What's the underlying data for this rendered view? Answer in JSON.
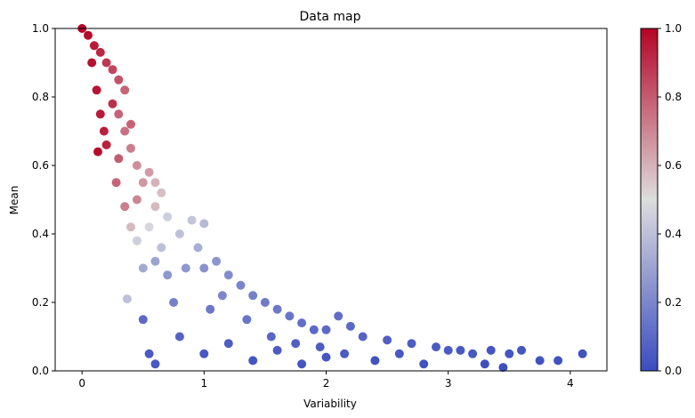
{
  "chart_data": {
    "type": "scatter",
    "title": "Data map",
    "xlabel": "Variability",
    "ylabel": "Mean",
    "xlim": [
      -0.22,
      4.3
    ],
    "ylim": [
      0.0,
      1.0
    ],
    "xticks": [
      0,
      1,
      2,
      3,
      4
    ],
    "yticks": [
      0.0,
      0.2,
      0.4,
      0.6,
      0.8,
      1.0
    ],
    "grid": false,
    "colormap": "coolwarm",
    "colorbar": {
      "range": [
        0.0,
        1.0
      ],
      "ticks": [
        0.0,
        0.2,
        0.4,
        0.6,
        0.8,
        1.0
      ]
    },
    "color_low": "#3b4cc0",
    "color_mid": "#dddddd",
    "color_high": "#b40426",
    "points": [
      [
        0.0,
        1.0,
        1.0
      ],
      [
        0.05,
        0.98,
        0.98
      ],
      [
        0.1,
        0.95,
        0.95
      ],
      [
        0.15,
        0.93,
        0.92
      ],
      [
        0.2,
        0.9,
        0.88
      ],
      [
        0.25,
        0.88,
        0.85
      ],
      [
        0.3,
        0.85,
        0.82
      ],
      [
        0.35,
        0.82,
        0.78
      ],
      [
        0.08,
        0.9,
        0.97
      ],
      [
        0.12,
        0.82,
        0.96
      ],
      [
        0.15,
        0.75,
        0.95
      ],
      [
        0.18,
        0.7,
        0.94
      ],
      [
        0.13,
        0.64,
        0.98
      ],
      [
        0.3,
        0.75,
        0.78
      ],
      [
        0.35,
        0.7,
        0.75
      ],
      [
        0.4,
        0.65,
        0.72
      ],
      [
        0.45,
        0.6,
        0.68
      ],
      [
        0.55,
        0.58,
        0.65
      ],
      [
        0.6,
        0.55,
        0.6
      ],
      [
        0.65,
        0.52,
        0.57
      ],
      [
        0.3,
        0.62,
        0.8
      ],
      [
        0.28,
        0.55,
        0.78
      ],
      [
        0.35,
        0.48,
        0.72
      ],
      [
        0.4,
        0.42,
        0.58
      ],
      [
        0.45,
        0.38,
        0.45
      ],
      [
        0.55,
        0.42,
        0.48
      ],
      [
        0.7,
        0.45,
        0.45
      ],
      [
        0.8,
        0.4,
        0.4
      ],
      [
        0.9,
        0.44,
        0.42
      ],
      [
        1.0,
        0.43,
        0.38
      ],
      [
        0.37,
        0.21,
        0.4
      ],
      [
        0.5,
        0.3,
        0.32
      ],
      [
        0.6,
        0.32,
        0.3
      ],
      [
        0.7,
        0.28,
        0.26
      ],
      [
        0.85,
        0.3,
        0.26
      ],
      [
        1.0,
        0.3,
        0.24
      ],
      [
        1.1,
        0.32,
        0.25
      ],
      [
        1.2,
        0.28,
        0.22
      ],
      [
        1.3,
        0.25,
        0.2
      ],
      [
        1.4,
        0.22,
        0.18
      ],
      [
        1.5,
        0.2,
        0.16
      ],
      [
        1.6,
        0.18,
        0.15
      ],
      [
        1.7,
        0.16,
        0.14
      ],
      [
        1.8,
        0.14,
        0.12
      ],
      [
        1.9,
        0.12,
        0.1
      ],
      [
        2.0,
        0.12,
        0.1
      ],
      [
        2.1,
        0.16,
        0.12
      ],
      [
        2.2,
        0.13,
        0.1
      ],
      [
        2.3,
        0.1,
        0.08
      ],
      [
        2.5,
        0.09,
        0.07
      ],
      [
        2.7,
        0.08,
        0.06
      ],
      [
        2.9,
        0.07,
        0.05
      ],
      [
        3.0,
        0.06,
        0.05
      ],
      [
        3.1,
        0.06,
        0.04
      ],
      [
        3.2,
        0.05,
        0.04
      ],
      [
        3.35,
        0.06,
        0.03
      ],
      [
        3.5,
        0.05,
        0.03
      ],
      [
        3.6,
        0.06,
        0.03
      ],
      [
        3.75,
        0.03,
        0.02
      ],
      [
        3.9,
        0.03,
        0.02
      ],
      [
        4.1,
        0.05,
        0.02
      ],
      [
        0.5,
        0.15,
        0.1
      ],
      [
        0.55,
        0.05,
        0.05
      ],
      [
        0.6,
        0.02,
        0.04
      ],
      [
        0.8,
        0.1,
        0.08
      ],
      [
        1.0,
        0.05,
        0.04
      ],
      [
        1.2,
        0.08,
        0.06
      ],
      [
        1.4,
        0.03,
        0.03
      ],
      [
        1.6,
        0.06,
        0.05
      ],
      [
        1.8,
        0.02,
        0.03
      ],
      [
        2.0,
        0.04,
        0.03
      ],
      [
        2.4,
        0.03,
        0.02
      ],
      [
        2.8,
        0.02,
        0.02
      ],
      [
        3.3,
        0.02,
        0.01
      ],
      [
        3.45,
        0.01,
        0.01
      ],
      [
        1.05,
        0.18,
        0.15
      ],
      [
        0.75,
        0.2,
        0.18
      ],
      [
        0.45,
        0.5,
        0.7
      ],
      [
        0.5,
        0.55,
        0.66
      ],
      [
        0.25,
        0.78,
        0.9
      ],
      [
        0.2,
        0.66,
        0.93
      ],
      [
        0.4,
        0.72,
        0.78
      ],
      [
        0.6,
        0.48,
        0.58
      ],
      [
        0.65,
        0.36,
        0.4
      ],
      [
        0.95,
        0.36,
        0.34
      ],
      [
        1.15,
        0.22,
        0.2
      ],
      [
        1.35,
        0.15,
        0.14
      ],
      [
        1.55,
        0.1,
        0.09
      ],
      [
        1.75,
        0.08,
        0.07
      ],
      [
        1.95,
        0.07,
        0.06
      ],
      [
        2.15,
        0.05,
        0.05
      ],
      [
        2.6,
        0.05,
        0.04
      ]
    ]
  }
}
